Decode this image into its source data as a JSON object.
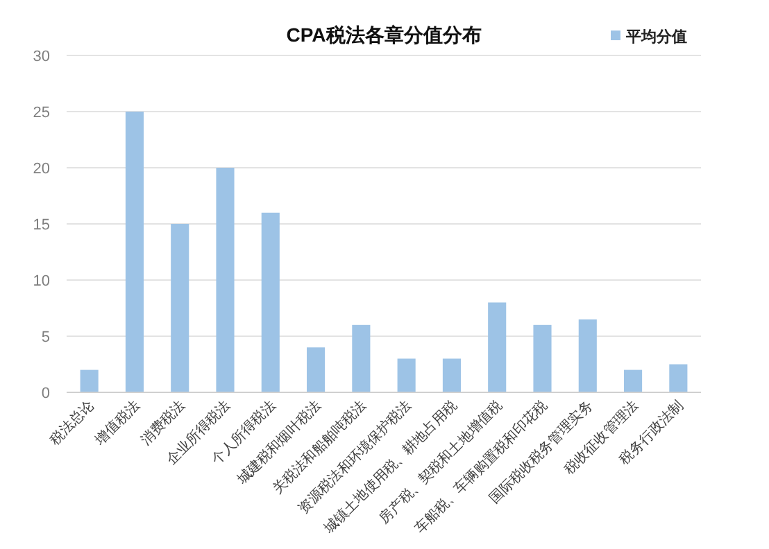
{
  "chart_data": {
    "type": "bar",
    "title": "CPA税法各章分值分布",
    "categories": [
      "税法总论",
      "增值税法",
      "消费税法",
      "企业所得税法",
      "个人所得税法",
      "城建税和烟叶税法",
      "关税法和船舶吨税法",
      "资源税法和环境保护税法",
      "城镇土地使用税、耕地占用税",
      "房产税、契税和土地增值税",
      "车船税、车辆购置税和印花税",
      "国际税收税务管理实务",
      "税收征收管理法",
      "税务行政法制"
    ],
    "series": [
      {
        "name": "平均分值",
        "color": "#9dc3e6",
        "values": [
          2,
          25,
          15,
          20,
          16,
          4,
          6,
          3,
          3,
          8,
          6,
          6.5,
          2,
          2.5
        ]
      }
    ],
    "ylim": [
      0,
      30
    ],
    "yticks": [
      0,
      5,
      10,
      15,
      20,
      25,
      30
    ],
    "grid": "y",
    "legend": "top right"
  }
}
